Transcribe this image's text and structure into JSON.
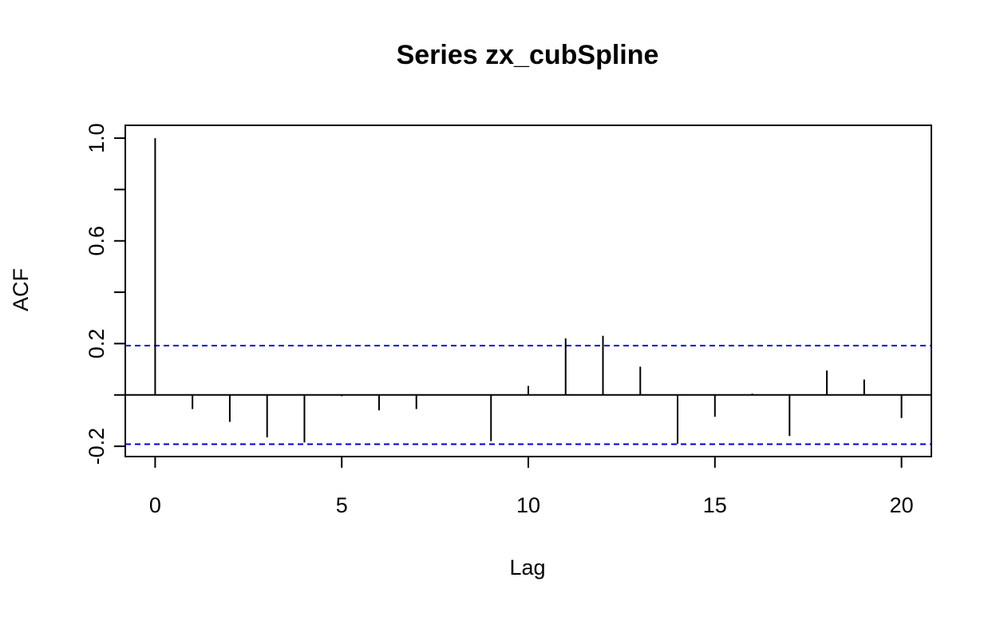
{
  "chart_data": {
    "type": "bar",
    "title": "Series  zx_cubSpline",
    "xlabel": "Lag",
    "ylabel": "ACF",
    "xlim": [
      -0.8,
      20.8
    ],
    "ylim": [
      -0.24,
      1.05
    ],
    "xticks": [
      0,
      5,
      10,
      15,
      20
    ],
    "xtick_labels": [
      "0",
      "5",
      "10",
      "15",
      "20"
    ],
    "yticks": [
      -0.2,
      0.0,
      0.2,
      0.4,
      0.6,
      0.8,
      1.0
    ],
    "ytick_labels": [
      "-0.2",
      "",
      "0.2",
      "",
      "0.6",
      "",
      "1.0"
    ],
    "lags": [
      0,
      1,
      2,
      3,
      4,
      5,
      6,
      7,
      8,
      9,
      10,
      11,
      12,
      13,
      14,
      15,
      16,
      17,
      18,
      19,
      20
    ],
    "values": [
      1.0,
      -0.055,
      -0.105,
      -0.165,
      -0.185,
      -0.005,
      -0.06,
      -0.055,
      0.0,
      -0.18,
      0.035,
      0.22,
      0.23,
      0.11,
      -0.19,
      -0.085,
      0.005,
      -0.16,
      0.095,
      0.06,
      -0.09
    ],
    "confidence_bound": 0.192,
    "zero_line": true,
    "grid": false,
    "colors": {
      "bars": "#000000",
      "bounds": "#0000cc",
      "axis": "#000000"
    }
  }
}
